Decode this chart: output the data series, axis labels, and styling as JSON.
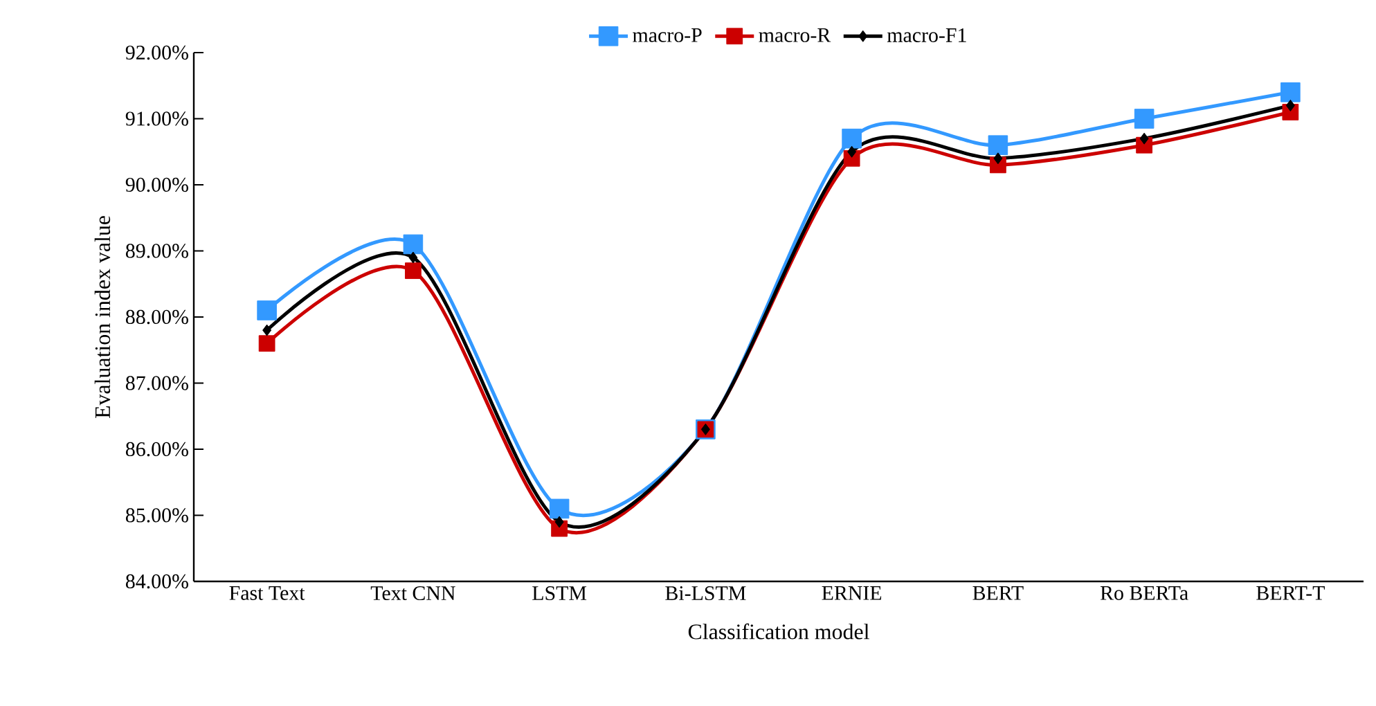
{
  "chart_data": {
    "type": "line",
    "xlabel": "Classification model",
    "ylabel": "Evaluation index value",
    "categories": [
      "Fast Text",
      "Text CNN",
      "LSTM",
      "Bi-LSTM",
      "ERNIE",
      "BERT",
      "Ro BERTa",
      "BERT-T"
    ],
    "series": [
      {
        "name": "macro-P",
        "color": "#3399ff",
        "marker": "square",
        "values": [
          88.1,
          89.1,
          85.1,
          86.3,
          90.7,
          90.6,
          91.0,
          91.4
        ]
      },
      {
        "name": "macro-R",
        "color": "#cc0000",
        "marker": "square",
        "values": [
          87.6,
          88.7,
          84.8,
          86.3,
          90.4,
          90.3,
          90.6,
          91.1
        ]
      },
      {
        "name": "macro-F1",
        "color": "#000000",
        "marker": "diamond",
        "values": [
          87.8,
          88.9,
          84.9,
          86.3,
          90.5,
          90.4,
          90.7,
          91.2
        ]
      }
    ],
    "ylim": [
      84,
      92
    ],
    "yticks": [
      {
        "value": 84,
        "label": "84.00%"
      },
      {
        "value": 85,
        "label": "85.00%"
      },
      {
        "value": 86,
        "label": "86.00%"
      },
      {
        "value": 87,
        "label": "87.00%"
      },
      {
        "value": 88,
        "label": "88.00%"
      },
      {
        "value": 89,
        "label": "89.00%"
      },
      {
        "value": 90,
        "label": "90.00%"
      },
      {
        "value": 91,
        "label": "91.00%"
      },
      {
        "value": 92,
        "label": "92.00%"
      }
    ],
    "grid": false,
    "legend": "top",
    "line_style": "solid"
  }
}
